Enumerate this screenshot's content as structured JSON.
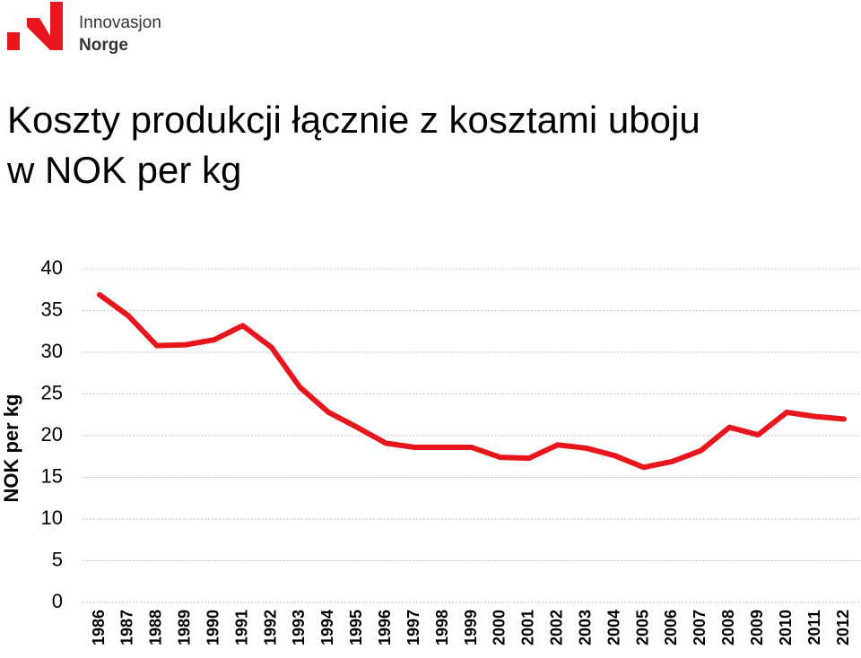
{
  "logo": {
    "line1": "Innovasjon",
    "line2": "Norge"
  },
  "chart_data": {
    "type": "line",
    "title": "Koszty produkcji łącznie z kosztami uboju w NOK per kg",
    "y_label": "NOK per kg",
    "categories": [
      "1986",
      "1987",
      "1988",
      "1989",
      "1990",
      "1991",
      "1992",
      "1993",
      "1994",
      "1995",
      "1996",
      "1997",
      "1998",
      "1999",
      "2000",
      "2001",
      "2002",
      "2003",
      "2004",
      "2005",
      "2006",
      "2007",
      "2008",
      "2009",
      "2010",
      "2011",
      "2012"
    ],
    "series": [
      {
        "color": "#e8161c",
        "values": [
          36.9,
          34.4,
          30.8,
          30.9,
          31.5,
          33.2,
          30.6,
          25.8,
          22.8,
          21.0,
          19.1,
          18.6,
          18.6,
          18.6,
          17.4,
          17.3,
          18.9,
          18.5,
          17.6,
          16.2,
          16.9,
          18.2,
          21.0,
          20.1,
          22.8,
          22.3,
          22.0
        ]
      }
    ],
    "ylim": [
      0,
      40
    ],
    "yticks": [
      0,
      5,
      10,
      15,
      20,
      25,
      30,
      35,
      40
    ],
    "grid": true
  }
}
